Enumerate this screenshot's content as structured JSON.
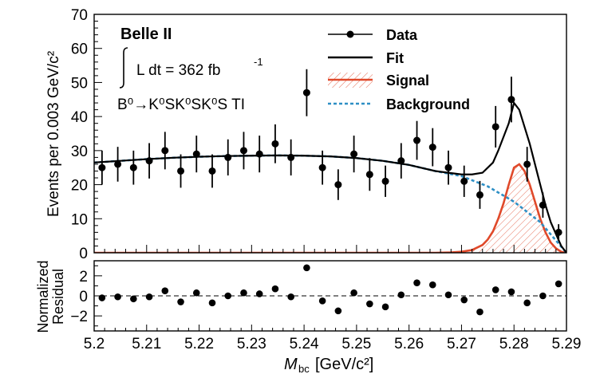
{
  "chart_data": {
    "type": "scatter",
    "experiment": "Belle II",
    "luminosity": {
      "prefix": "L dt = 362 fb",
      "exponent": "-1"
    },
    "decay": {
      "text": "B⁰→K⁰SK⁰SK⁰S TI"
    },
    "top_panel": {
      "ylabel": "Events per 0.003 GeV/c²",
      "ylim": [
        0,
        70
      ],
      "yticks": [
        "0",
        "10",
        "20",
        "30",
        "40",
        "50",
        "60",
        "70"
      ],
      "data": {
        "name": "Data",
        "x": [
          5.2015,
          5.2045,
          5.2075,
          5.2105,
          5.2135,
          5.2165,
          5.2195,
          5.2225,
          5.2255,
          5.2285,
          5.2315,
          5.2345,
          5.2375,
          5.2405,
          5.2435,
          5.2465,
          5.2495,
          5.2525,
          5.2555,
          5.2585,
          5.2615,
          5.2645,
          5.2675,
          5.2705,
          5.2735,
          5.2765,
          5.2795,
          5.2825,
          5.2855,
          5.2885
        ],
        "y": [
          25,
          26,
          25,
          27,
          30,
          24,
          29,
          24,
          28,
          30,
          29,
          32,
          28,
          47,
          25,
          20,
          29,
          23,
          21,
          27,
          33,
          31,
          25,
          21,
          17,
          37,
          45,
          26,
          14,
          6
        ],
        "err": [
          5,
          5.1,
          5,
          5.2,
          5.5,
          4.9,
          5.4,
          4.9,
          5.3,
          5.5,
          5.4,
          5.7,
          5.3,
          6.9,
          5,
          4.5,
          5.4,
          4.8,
          4.6,
          5.2,
          5.7,
          5.6,
          5,
          4.6,
          4.1,
          6.1,
          6.7,
          5.1,
          3.7,
          2.4
        ]
      },
      "fit": {
        "name": "Fit",
        "x": [
          5.2,
          5.205,
          5.21,
          5.215,
          5.22,
          5.225,
          5.23,
          5.235,
          5.24,
          5.245,
          5.25,
          5.255,
          5.26,
          5.265,
          5.27,
          5.272,
          5.274,
          5.276,
          5.277,
          5.278,
          5.279,
          5.28,
          5.281,
          5.282,
          5.283,
          5.284,
          5.285,
          5.286,
          5.287,
          5.288,
          5.289,
          5.29
        ],
        "y": [
          26.5,
          27,
          27.5,
          27.9,
          28.2,
          28.4,
          28.5,
          28.6,
          28.5,
          28.3,
          27.8,
          27,
          25.8,
          24,
          23,
          23,
          23.5,
          26.5,
          30,
          34,
          38,
          44,
          42,
          37,
          32,
          26,
          20,
          14,
          9,
          5.5,
          2,
          0
        ]
      },
      "signal": {
        "name": "Signal",
        "x": [
          5.2,
          5.265,
          5.268,
          5.27,
          5.272,
          5.274,
          5.275,
          5.276,
          5.277,
          5.278,
          5.279,
          5.28,
          5.281,
          5.282,
          5.283,
          5.284,
          5.285,
          5.286,
          5.287,
          5.288,
          5.289,
          5.29
        ],
        "y": [
          0,
          0,
          0.1,
          0.3,
          0.8,
          2.3,
          3.9,
          6.3,
          10,
          14.5,
          20,
          25,
          26,
          24,
          20,
          15,
          10,
          6,
          3,
          1.3,
          0.3,
          0
        ]
      },
      "background": {
        "name": "Background",
        "x": [
          5.2,
          5.205,
          5.21,
          5.215,
          5.22,
          5.225,
          5.23,
          5.235,
          5.24,
          5.245,
          5.25,
          5.255,
          5.26,
          5.265,
          5.27,
          5.275,
          5.28,
          5.285,
          5.29
        ],
        "y": [
          26.5,
          27,
          27.5,
          27.9,
          28.2,
          28.4,
          28.5,
          28.6,
          28.5,
          28.3,
          27.8,
          27,
          25.8,
          24,
          22.5,
          19.5,
          15,
          9,
          0
        ]
      },
      "legend": {
        "position": "top-right",
        "entries": [
          "Data",
          "Fit",
          "Signal",
          "Background"
        ]
      }
    },
    "bottom_panel": {
      "ylabel_line1": "Normalized",
      "ylabel_line2": "Residual",
      "ylim": [
        -3.5,
        3.5
      ],
      "yticks": [
        "2",
        "0",
        "−2"
      ],
      "residuals": [
        -0.2,
        -0.1,
        -0.3,
        -0.1,
        0.5,
        -0.6,
        0.3,
        -0.7,
        0,
        0.3,
        0.2,
        0.7,
        -0.1,
        2.8,
        -0.5,
        -1.5,
        0.3,
        -0.8,
        -1.1,
        0.1,
        1.3,
        1.1,
        0.1,
        -0.4,
        -1.6,
        0.6,
        0.4,
        -0.7,
        0,
        1.2
      ]
    },
    "xlabel": "M",
    "xlabel_sub": "bc",
    "xlabel_unit": "[GeV/c²]",
    "xlim": [
      5.2,
      5.29
    ],
    "xticks": [
      "5.2",
      "5.21",
      "5.22",
      "5.23",
      "5.24",
      "5.25",
      "5.26",
      "5.27",
      "5.28",
      "5.29"
    ],
    "colors": {
      "data": "#000000",
      "fit": "#000000",
      "signal": "#e0492a",
      "background": "#2e8fc5"
    }
  }
}
